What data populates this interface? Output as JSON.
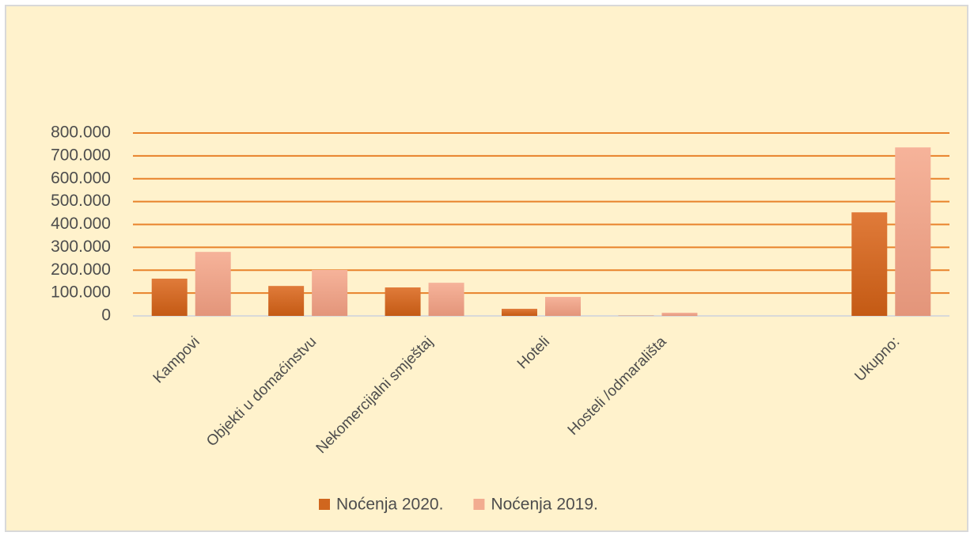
{
  "chart_data": {
    "type": "bar",
    "categories": [
      "Kampovi",
      "Objekti u domaćinstvu",
      "Nekomercijalni smještaj",
      "Hoteli",
      "Hosteli /odmarališta",
      null,
      "Ukupno:"
    ],
    "series": [
      {
        "name": "Noćenja 2020.",
        "color": "#d0661e",
        "values": [
          163000,
          131000,
          124500,
          31000,
          1000,
          null,
          453000
        ]
      },
      {
        "name": "Noćenja 2019.",
        "color": "#f2ac90",
        "values": [
          280000,
          201000,
          145000,
          83000,
          14000,
          null,
          737000
        ]
      }
    ],
    "ylim": [
      0,
      800000
    ],
    "yticks": [
      0,
      {
        "value": 100000,
        "label": "100.000"
      },
      {
        "value": 200000,
        "label": "200.000"
      },
      {
        "value": 300000,
        "label": "300.000"
      },
      {
        "value": 400000,
        "label": "400.000"
      },
      {
        "value": 500000,
        "label": "500.000"
      },
      {
        "value": 600000,
        "label": "600.000"
      },
      {
        "value": 700000,
        "label": "700.000"
      },
      {
        "value": 800000,
        "label": "800.000"
      }
    ],
    "grid": true,
    "legend": "bottom"
  }
}
